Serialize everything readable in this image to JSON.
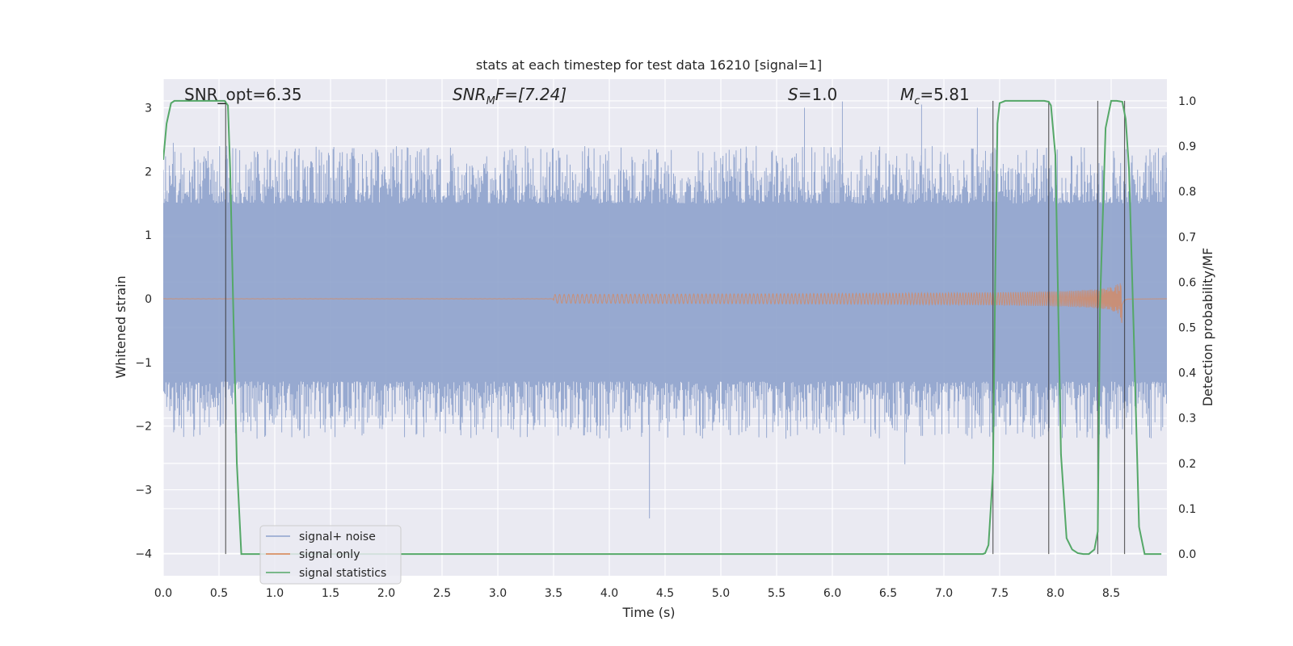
{
  "chart_data": {
    "type": "line",
    "title": "stats at each timestep for test data 16210 [signal=1]",
    "xlabel": "Time (s)",
    "ylabel": "Whitened strain",
    "y2label": "Detection probability/MF",
    "xlim": [
      0.0,
      9.0
    ],
    "ylim": [
      -4.35,
      3.45
    ],
    "y2lim": [
      -0.048,
      1.048
    ],
    "xticks": [
      "0.0",
      "0.5",
      "1.0",
      "1.5",
      "2.0",
      "2.5",
      "3.0",
      "3.5",
      "4.0",
      "4.5",
      "5.0",
      "5.5",
      "6.0",
      "6.5",
      "7.0",
      "7.5",
      "8.0",
      "8.5"
    ],
    "yticks": [
      "3",
      "2",
      "1",
      "0",
      "−1",
      "−2",
      "−3",
      "−4"
    ],
    "y2ticks": [
      "1.0",
      "0.9",
      "0.8",
      "0.7",
      "0.6",
      "0.5",
      "0.4",
      "0.3",
      "0.2",
      "0.1",
      "0.0"
    ],
    "grid": true,
    "legend_placement": "lower-left",
    "annotations": {
      "snr_opt": "SNR_opt=6.35",
      "snr_mf_base": "SNR",
      "snr_mf_sub": "M",
      "snr_mf_rest": "F=[7.24]",
      "s_base": "S",
      "s_rest": "=1.0",
      "mc_base": "M",
      "mc_sub": "c",
      "mc_rest": "=5.81"
    },
    "series": [
      {
        "name": "signal+ noise",
        "color": "#8ea2cc",
        "kind": "noise",
        "x_range": [
          0.0,
          9.0
        ],
        "envelope": [
          -1.5,
          1.7
        ],
        "peak_values": [
          [
            0.09,
            2.45
          ],
          [
            0.57,
            2.4
          ],
          [
            1.15,
            2.2
          ],
          [
            4.36,
            -3.45
          ],
          [
            5.75,
            3.0
          ],
          [
            6.09,
            3.1
          ],
          [
            6.65,
            -2.6
          ],
          [
            6.8,
            3.05
          ],
          [
            7.3,
            3.0
          ]
        ]
      },
      {
        "name": "signal only",
        "color": "#dd8452",
        "kind": "chirp",
        "x_range": [
          0.0,
          8.65
        ],
        "start_amplitude": 0.0,
        "end_amplitude": 0.42,
        "merger_time": 8.6
      },
      {
        "name": "signal statistics",
        "color": "#55a868",
        "axis": "right",
        "x": [
          0.0,
          0.03,
          0.07,
          0.1,
          0.15,
          0.2,
          0.3,
          0.4,
          0.5,
          0.55,
          0.58,
          0.6,
          0.63,
          0.66,
          0.7,
          0.8,
          1.0,
          2.0,
          3.0,
          4.0,
          5.0,
          6.0,
          7.0,
          7.35,
          7.37,
          7.4,
          7.44,
          7.46,
          7.48,
          7.5,
          7.55,
          7.6,
          7.7,
          7.8,
          7.9,
          7.94,
          7.96,
          8.0,
          8.05,
          8.1,
          8.15,
          8.2,
          8.25,
          8.3,
          8.35,
          8.38,
          8.4,
          8.45,
          8.5,
          8.55,
          8.6,
          8.63,
          8.66,
          8.7,
          8.75,
          8.8,
          8.95
        ],
        "y": [
          0.87,
          0.95,
          0.995,
          1.0,
          1.0,
          1.0,
          1.0,
          1.0,
          1.0,
          1.0,
          0.99,
          0.85,
          0.52,
          0.2,
          0.0,
          0.0,
          0.0,
          0.0,
          0.0,
          0.0,
          0.0,
          0.0,
          0.0,
          0.0,
          0.002,
          0.02,
          0.18,
          0.6,
          0.95,
          0.995,
          1.0,
          1.0,
          1.0,
          1.0,
          1.0,
          0.998,
          0.99,
          0.88,
          0.22,
          0.035,
          0.01,
          0.002,
          0.0,
          0.0,
          0.01,
          0.05,
          0.55,
          0.94,
          1.0,
          1.0,
          0.998,
          0.96,
          0.85,
          0.51,
          0.06,
          0.0,
          0.0
        ]
      }
    ],
    "vertical_markers": [
      0.56,
      7.44,
      7.94,
      8.38,
      8.62
    ]
  }
}
